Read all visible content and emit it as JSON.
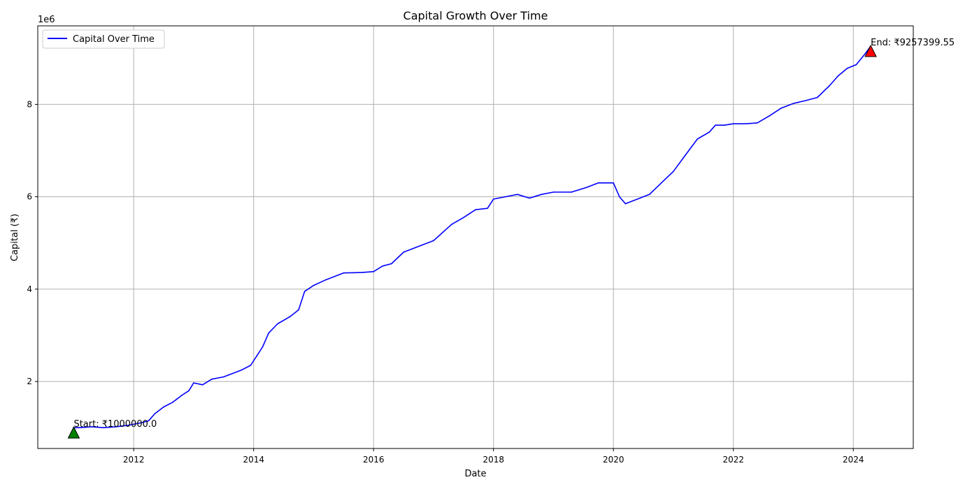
{
  "chart_data": {
    "type": "line",
    "title": "Capital Growth Over Time",
    "xlabel": "Date",
    "ylabel": "Capital (₹)",
    "y_offset_label": "1e6",
    "x_ticks": [
      "2012",
      "2014",
      "2016",
      "2018",
      "2020",
      "2022",
      "2024"
    ],
    "y_ticks": [
      "2",
      "4",
      "6",
      "8"
    ],
    "xlim": [
      2010.4,
      2025.0
    ],
    "ylim": [
      0.55,
      9.7
    ],
    "y_unit": "millions (₹)",
    "grid": true,
    "legend_position": "top-left",
    "series": [
      {
        "name": "Capital Over Time",
        "color": "#0000ff",
        "x": [
          2011.0,
          2011.1,
          2011.3,
          2011.5,
          2011.7,
          2011.9,
          2012.1,
          2012.25,
          2012.35,
          2012.5,
          2012.65,
          2012.8,
          2012.92,
          2013.0,
          2013.15,
          2013.3,
          2013.5,
          2013.8,
          2013.95,
          2014.05,
          2014.15,
          2014.25,
          2014.4,
          2014.6,
          2014.75,
          2014.85,
          2015.0,
          2015.2,
          2015.5,
          2015.8,
          2016.0,
          2016.15,
          2016.3,
          2016.5,
          2016.7,
          2017.0,
          2017.3,
          2017.5,
          2017.7,
          2017.9,
          2018.0,
          2018.2,
          2018.4,
          2018.6,
          2018.8,
          2019.0,
          2019.3,
          2019.55,
          2019.75,
          2020.0,
          2020.1,
          2020.2,
          2020.4,
          2020.6,
          2020.8,
          2021.0,
          2021.2,
          2021.4,
          2021.6,
          2021.7,
          2021.85,
          2022.0,
          2022.2,
          2022.4,
          2022.6,
          2022.8,
          2023.0,
          2023.2,
          2023.4,
          2023.6,
          2023.75,
          2023.9,
          2024.05,
          2024.2,
          2024.29
        ],
        "y": [
          1.0,
          1.0,
          1.02,
          1.0,
          1.02,
          1.05,
          1.1,
          1.15,
          1.3,
          1.45,
          1.55,
          1.7,
          1.8,
          1.97,
          1.93,
          2.05,
          2.1,
          2.25,
          2.35,
          2.55,
          2.75,
          3.05,
          3.25,
          3.4,
          3.55,
          3.95,
          4.08,
          4.2,
          4.35,
          4.36,
          4.38,
          4.5,
          4.55,
          4.8,
          4.9,
          5.05,
          5.4,
          5.55,
          5.72,
          5.75,
          5.95,
          6.0,
          6.05,
          5.97,
          6.05,
          6.1,
          6.1,
          6.2,
          6.3,
          6.3,
          6.0,
          5.85,
          5.95,
          6.05,
          6.3,
          6.55,
          6.9,
          7.25,
          7.4,
          7.55,
          7.55,
          7.58,
          7.58,
          7.6,
          7.75,
          7.92,
          8.02,
          8.08,
          8.15,
          8.4,
          8.62,
          8.78,
          8.86,
          9.1,
          9.26
        ]
      }
    ],
    "markers": [
      {
        "name": "start",
        "x": 2011.0,
        "y": 0.88,
        "color": "#008000",
        "label": "Start: ₹1000000.0"
      },
      {
        "name": "end",
        "x": 2024.29,
        "y": 9.14,
        "color": "#ff0000",
        "label": "End: ₹9257399.55"
      }
    ]
  }
}
